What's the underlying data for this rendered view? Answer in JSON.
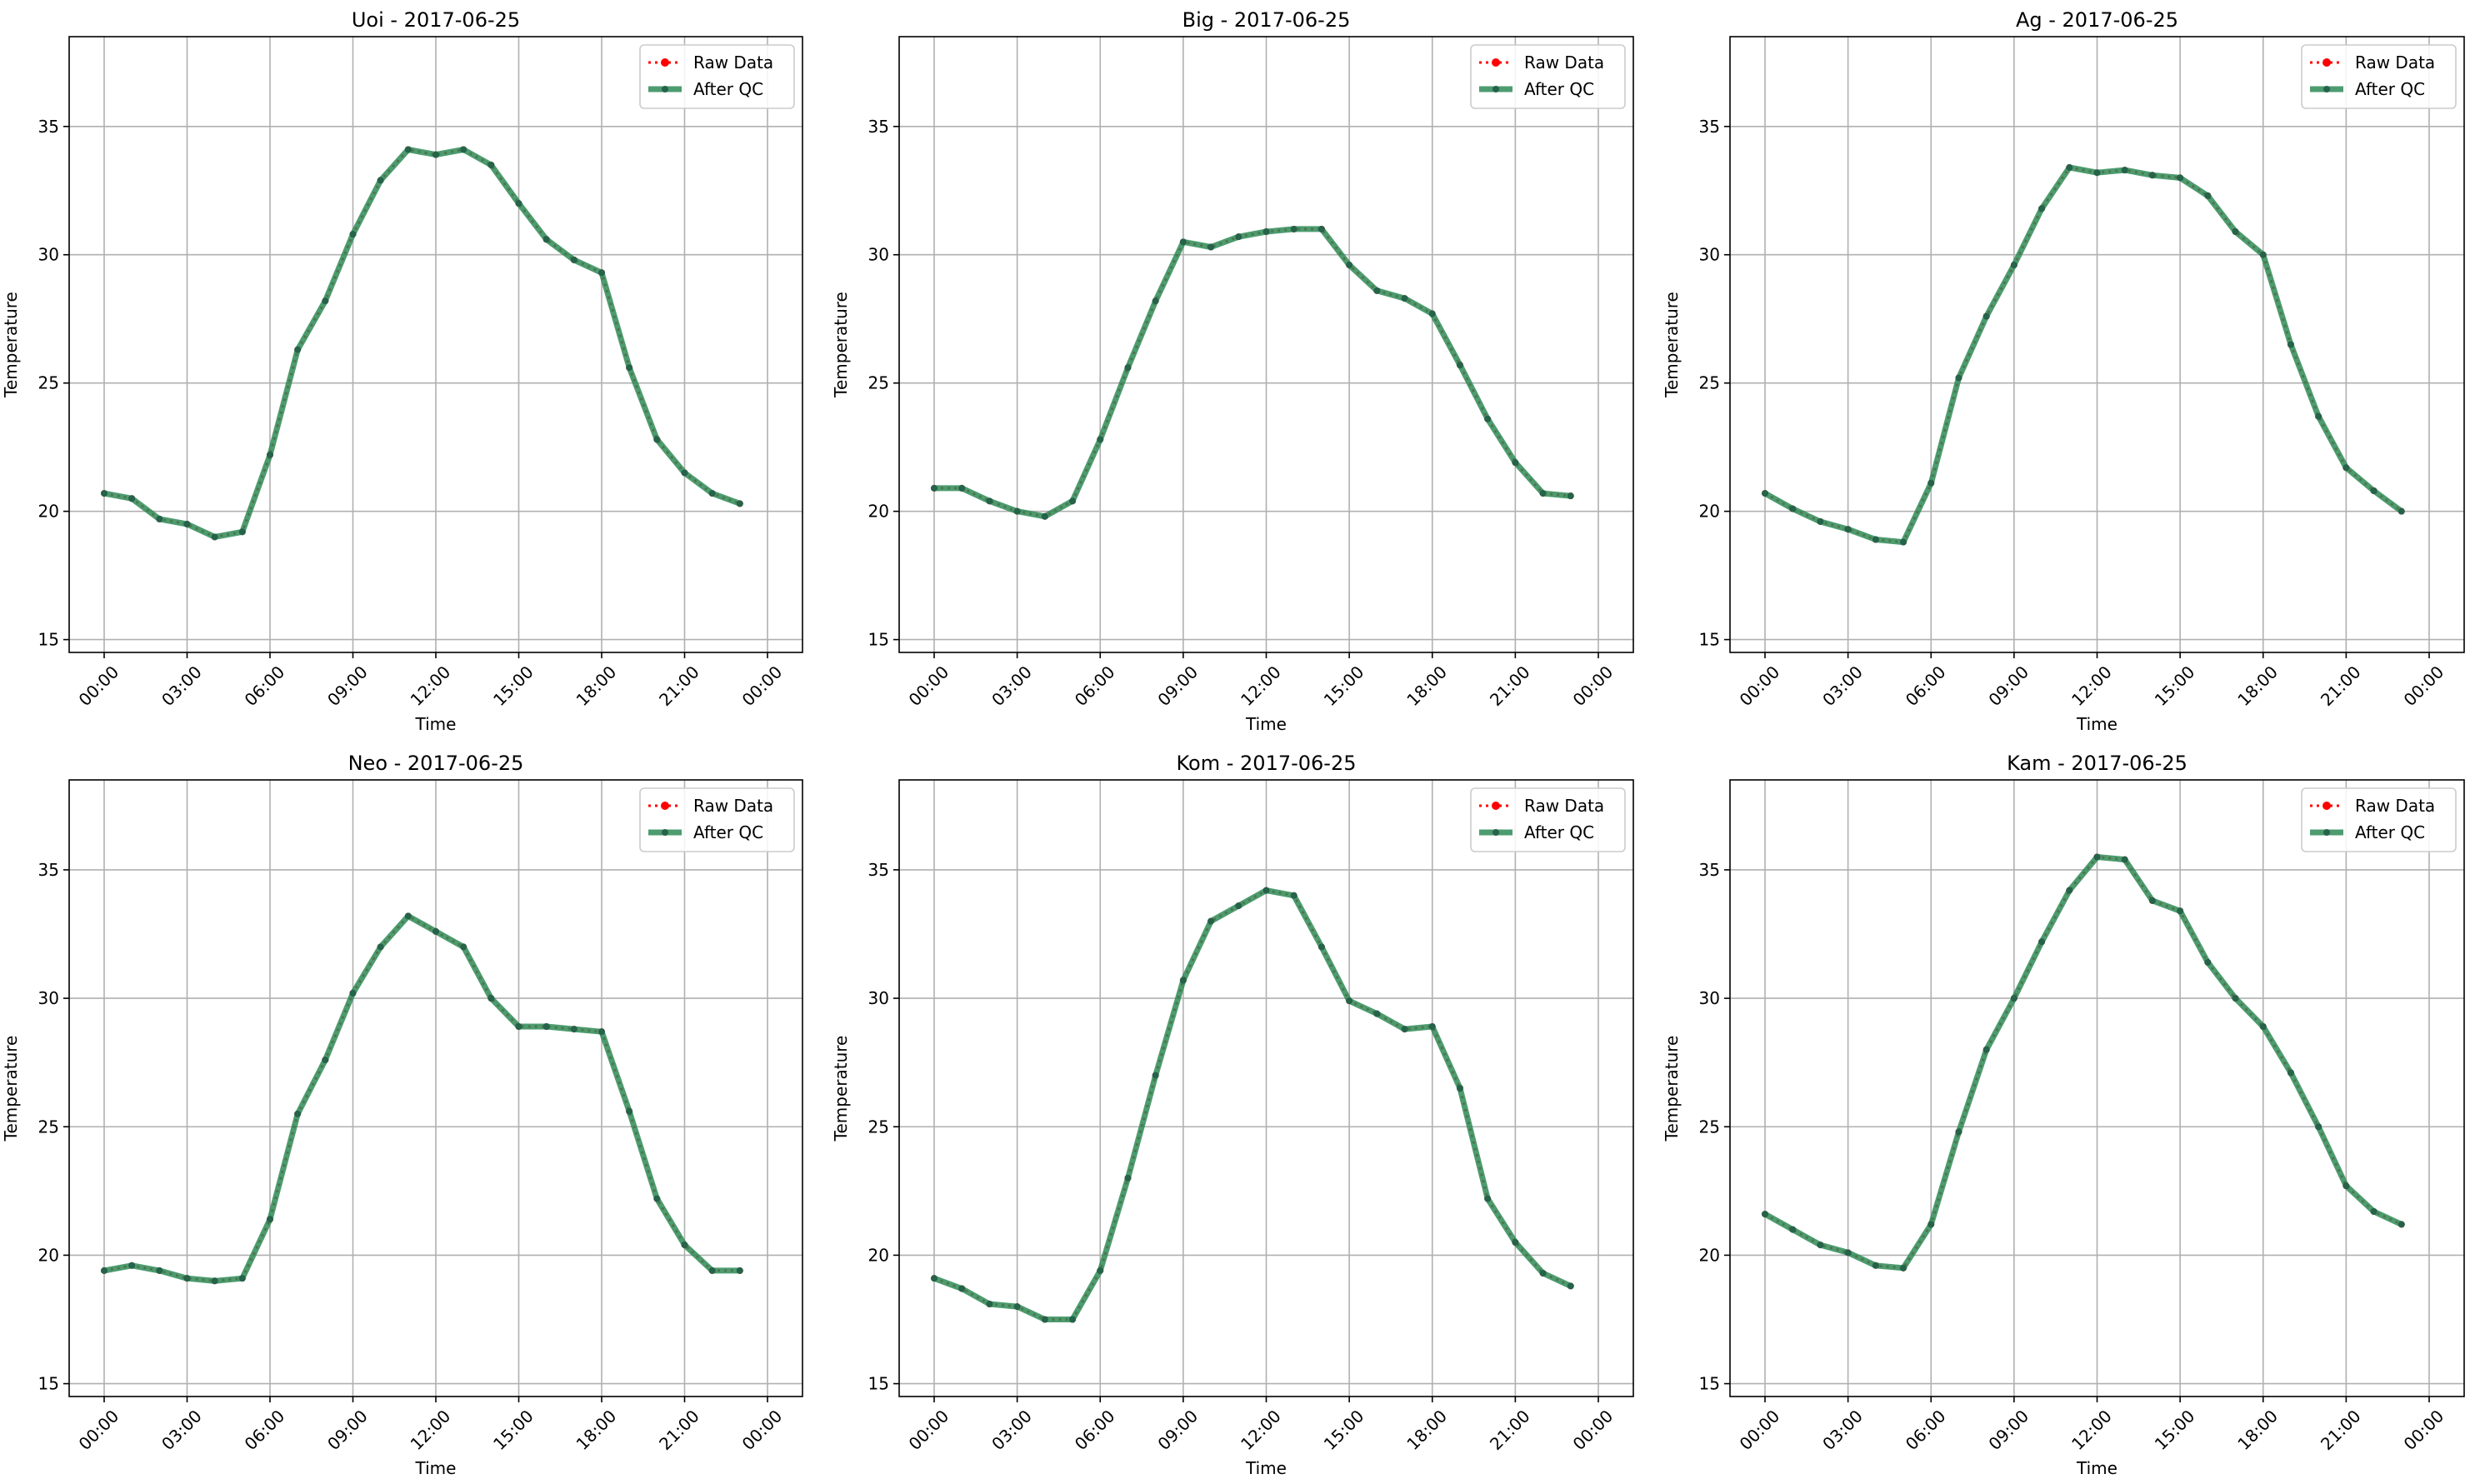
{
  "chart_data": [
    {
      "type": "line",
      "title": "Uoi - 2017-06-25",
      "xlabel": "Time",
      "ylabel": "Temperature",
      "x_ticks": [
        "00:00",
        "03:00",
        "06:00",
        "09:00",
        "12:00",
        "15:00",
        "18:00",
        "21:00",
        "00:00"
      ],
      "y_ticks": [
        15,
        20,
        25,
        30,
        35
      ],
      "ylim": [
        14.5,
        38.5
      ],
      "grid": true,
      "legend": "top-right",
      "series": [
        {
          "name": "Raw Data",
          "color": "#ff0000",
          "values": [
            20.7,
            20.5,
            19.7,
            19.5,
            19.0,
            19.2,
            22.2,
            26.3,
            28.2,
            30.8,
            32.9,
            34.1,
            33.9,
            34.1,
            33.5,
            32.0,
            30.6,
            29.8,
            29.3,
            25.6,
            22.8,
            21.5,
            20.7,
            20.3
          ]
        },
        {
          "name": "After QC",
          "color": "#2e8b57",
          "values": [
            20.7,
            20.5,
            19.7,
            19.5,
            19.0,
            19.2,
            22.2,
            26.3,
            28.2,
            30.8,
            32.9,
            34.1,
            33.9,
            34.1,
            33.5,
            32.0,
            30.6,
            29.8,
            29.3,
            25.6,
            22.8,
            21.5,
            20.7,
            20.3
          ]
        }
      ]
    },
    {
      "type": "line",
      "title": "Big - 2017-06-25",
      "xlabel": "Time",
      "ylabel": "Temperature",
      "x_ticks": [
        "00:00",
        "03:00",
        "06:00",
        "09:00",
        "12:00",
        "15:00",
        "18:00",
        "21:00",
        "00:00"
      ],
      "y_ticks": [
        15,
        20,
        25,
        30,
        35
      ],
      "ylim": [
        14.5,
        38.5
      ],
      "grid": true,
      "legend": "top-right",
      "series": [
        {
          "name": "Raw Data",
          "color": "#ff0000",
          "values": [
            20.9,
            20.9,
            20.4,
            20.0,
            19.8,
            20.4,
            22.8,
            25.6,
            28.2,
            30.5,
            30.3,
            30.7,
            30.9,
            31.0,
            31.0,
            29.6,
            28.6,
            28.3,
            27.7,
            25.7,
            23.6,
            21.9,
            20.7,
            20.6
          ]
        },
        {
          "name": "After QC",
          "color": "#2e8b57",
          "values": [
            20.9,
            20.9,
            20.4,
            20.0,
            19.8,
            20.4,
            22.8,
            25.6,
            28.2,
            30.5,
            30.3,
            30.7,
            30.9,
            31.0,
            31.0,
            29.6,
            28.6,
            28.3,
            27.7,
            25.7,
            23.6,
            21.9,
            20.7,
            20.6
          ]
        }
      ]
    },
    {
      "type": "line",
      "title": "Ag - 2017-06-25",
      "xlabel": "Time",
      "ylabel": "Temperature",
      "x_ticks": [
        "00:00",
        "03:00",
        "06:00",
        "09:00",
        "12:00",
        "15:00",
        "18:00",
        "21:00",
        "00:00"
      ],
      "y_ticks": [
        15,
        20,
        25,
        30,
        35
      ],
      "ylim": [
        14.5,
        38.5
      ],
      "grid": true,
      "legend": "top-right",
      "series": [
        {
          "name": "Raw Data",
          "color": "#ff0000",
          "values": [
            20.7,
            20.1,
            19.6,
            19.3,
            18.9,
            18.8,
            21.1,
            25.2,
            27.6,
            29.6,
            31.8,
            33.4,
            33.2,
            33.3,
            33.1,
            33.0,
            32.3,
            30.9,
            30.0,
            26.5,
            23.7,
            21.7,
            20.8,
            20.0
          ]
        },
        {
          "name": "After QC",
          "color": "#2e8b57",
          "values": [
            20.7,
            20.1,
            19.6,
            19.3,
            18.9,
            18.8,
            21.1,
            25.2,
            27.6,
            29.6,
            31.8,
            33.4,
            33.2,
            33.3,
            33.1,
            33.0,
            32.3,
            30.9,
            30.0,
            26.5,
            23.7,
            21.7,
            20.8,
            20.0
          ]
        }
      ]
    },
    {
      "type": "line",
      "title": "Neo - 2017-06-25",
      "xlabel": "Time",
      "ylabel": "Temperature",
      "x_ticks": [
        "00:00",
        "03:00",
        "06:00",
        "09:00",
        "12:00",
        "15:00",
        "18:00",
        "21:00",
        "00:00"
      ],
      "y_ticks": [
        15,
        20,
        25,
        30,
        35
      ],
      "ylim": [
        14.5,
        38.5
      ],
      "grid": true,
      "legend": "top-right",
      "series": [
        {
          "name": "Raw Data",
          "color": "#ff0000",
          "values": [
            19.4,
            19.6,
            19.4,
            19.1,
            19.0,
            19.1,
            21.4,
            25.5,
            27.6,
            30.2,
            32.0,
            33.2,
            32.6,
            32.0,
            30.0,
            28.9,
            28.9,
            28.8,
            28.7,
            25.6,
            22.2,
            20.4,
            19.4,
            19.4
          ]
        },
        {
          "name": "After QC",
          "color": "#2e8b57",
          "values": [
            19.4,
            19.6,
            19.4,
            19.1,
            19.0,
            19.1,
            21.4,
            25.5,
            27.6,
            30.2,
            32.0,
            33.2,
            32.6,
            32.0,
            30.0,
            28.9,
            28.9,
            28.8,
            28.7,
            25.6,
            22.2,
            20.4,
            19.4,
            19.4
          ]
        }
      ]
    },
    {
      "type": "line",
      "title": "Kom - 2017-06-25",
      "xlabel": "Time",
      "ylabel": "Temperature",
      "x_ticks": [
        "00:00",
        "03:00",
        "06:00",
        "09:00",
        "12:00",
        "15:00",
        "18:00",
        "21:00",
        "00:00"
      ],
      "y_ticks": [
        15,
        20,
        25,
        30,
        35
      ],
      "ylim": [
        14.5,
        38.5
      ],
      "grid": true,
      "legend": "top-right",
      "series": [
        {
          "name": "Raw Data",
          "color": "#ff0000",
          "values": [
            19.1,
            18.7,
            18.1,
            18.0,
            17.5,
            17.5,
            19.4,
            23.0,
            27.0,
            30.7,
            33.0,
            33.6,
            34.2,
            34.0,
            32.0,
            29.9,
            29.4,
            28.8,
            28.9,
            26.5,
            22.2,
            20.5,
            19.3,
            18.8
          ]
        },
        {
          "name": "After QC",
          "color": "#2e8b57",
          "values": [
            19.1,
            18.7,
            18.1,
            18.0,
            17.5,
            17.5,
            19.4,
            23.0,
            27.0,
            30.7,
            33.0,
            33.6,
            34.2,
            34.0,
            32.0,
            29.9,
            29.4,
            28.8,
            28.9,
            26.5,
            22.2,
            20.5,
            19.3,
            18.8
          ]
        }
      ]
    },
    {
      "type": "line",
      "title": "Kam - 2017-06-25",
      "xlabel": "Time",
      "ylabel": "Temperature",
      "x_ticks": [
        "00:00",
        "03:00",
        "06:00",
        "09:00",
        "12:00",
        "15:00",
        "18:00",
        "21:00",
        "00:00"
      ],
      "y_ticks": [
        15,
        20,
        25,
        30,
        35
      ],
      "ylim": [
        14.5,
        38.5
      ],
      "grid": true,
      "legend": "top-right",
      "series": [
        {
          "name": "Raw Data",
          "color": "#ff0000",
          "values": [
            21.6,
            21.0,
            20.4,
            20.1,
            19.6,
            19.5,
            21.2,
            24.8,
            28.0,
            30.0,
            32.2,
            34.2,
            35.5,
            35.4,
            33.8,
            33.4,
            31.4,
            30.0,
            28.9,
            27.1,
            25.0,
            22.7,
            21.7,
            21.2
          ]
        },
        {
          "name": "After QC",
          "color": "#2e8b57",
          "values": [
            21.6,
            21.0,
            20.4,
            20.1,
            19.6,
            19.5,
            21.2,
            24.8,
            28.0,
            30.0,
            32.2,
            34.2,
            35.5,
            35.4,
            33.8,
            33.4,
            31.4,
            30.0,
            28.9,
            27.1,
            25.0,
            22.7,
            21.7,
            21.2
          ]
        }
      ]
    }
  ]
}
